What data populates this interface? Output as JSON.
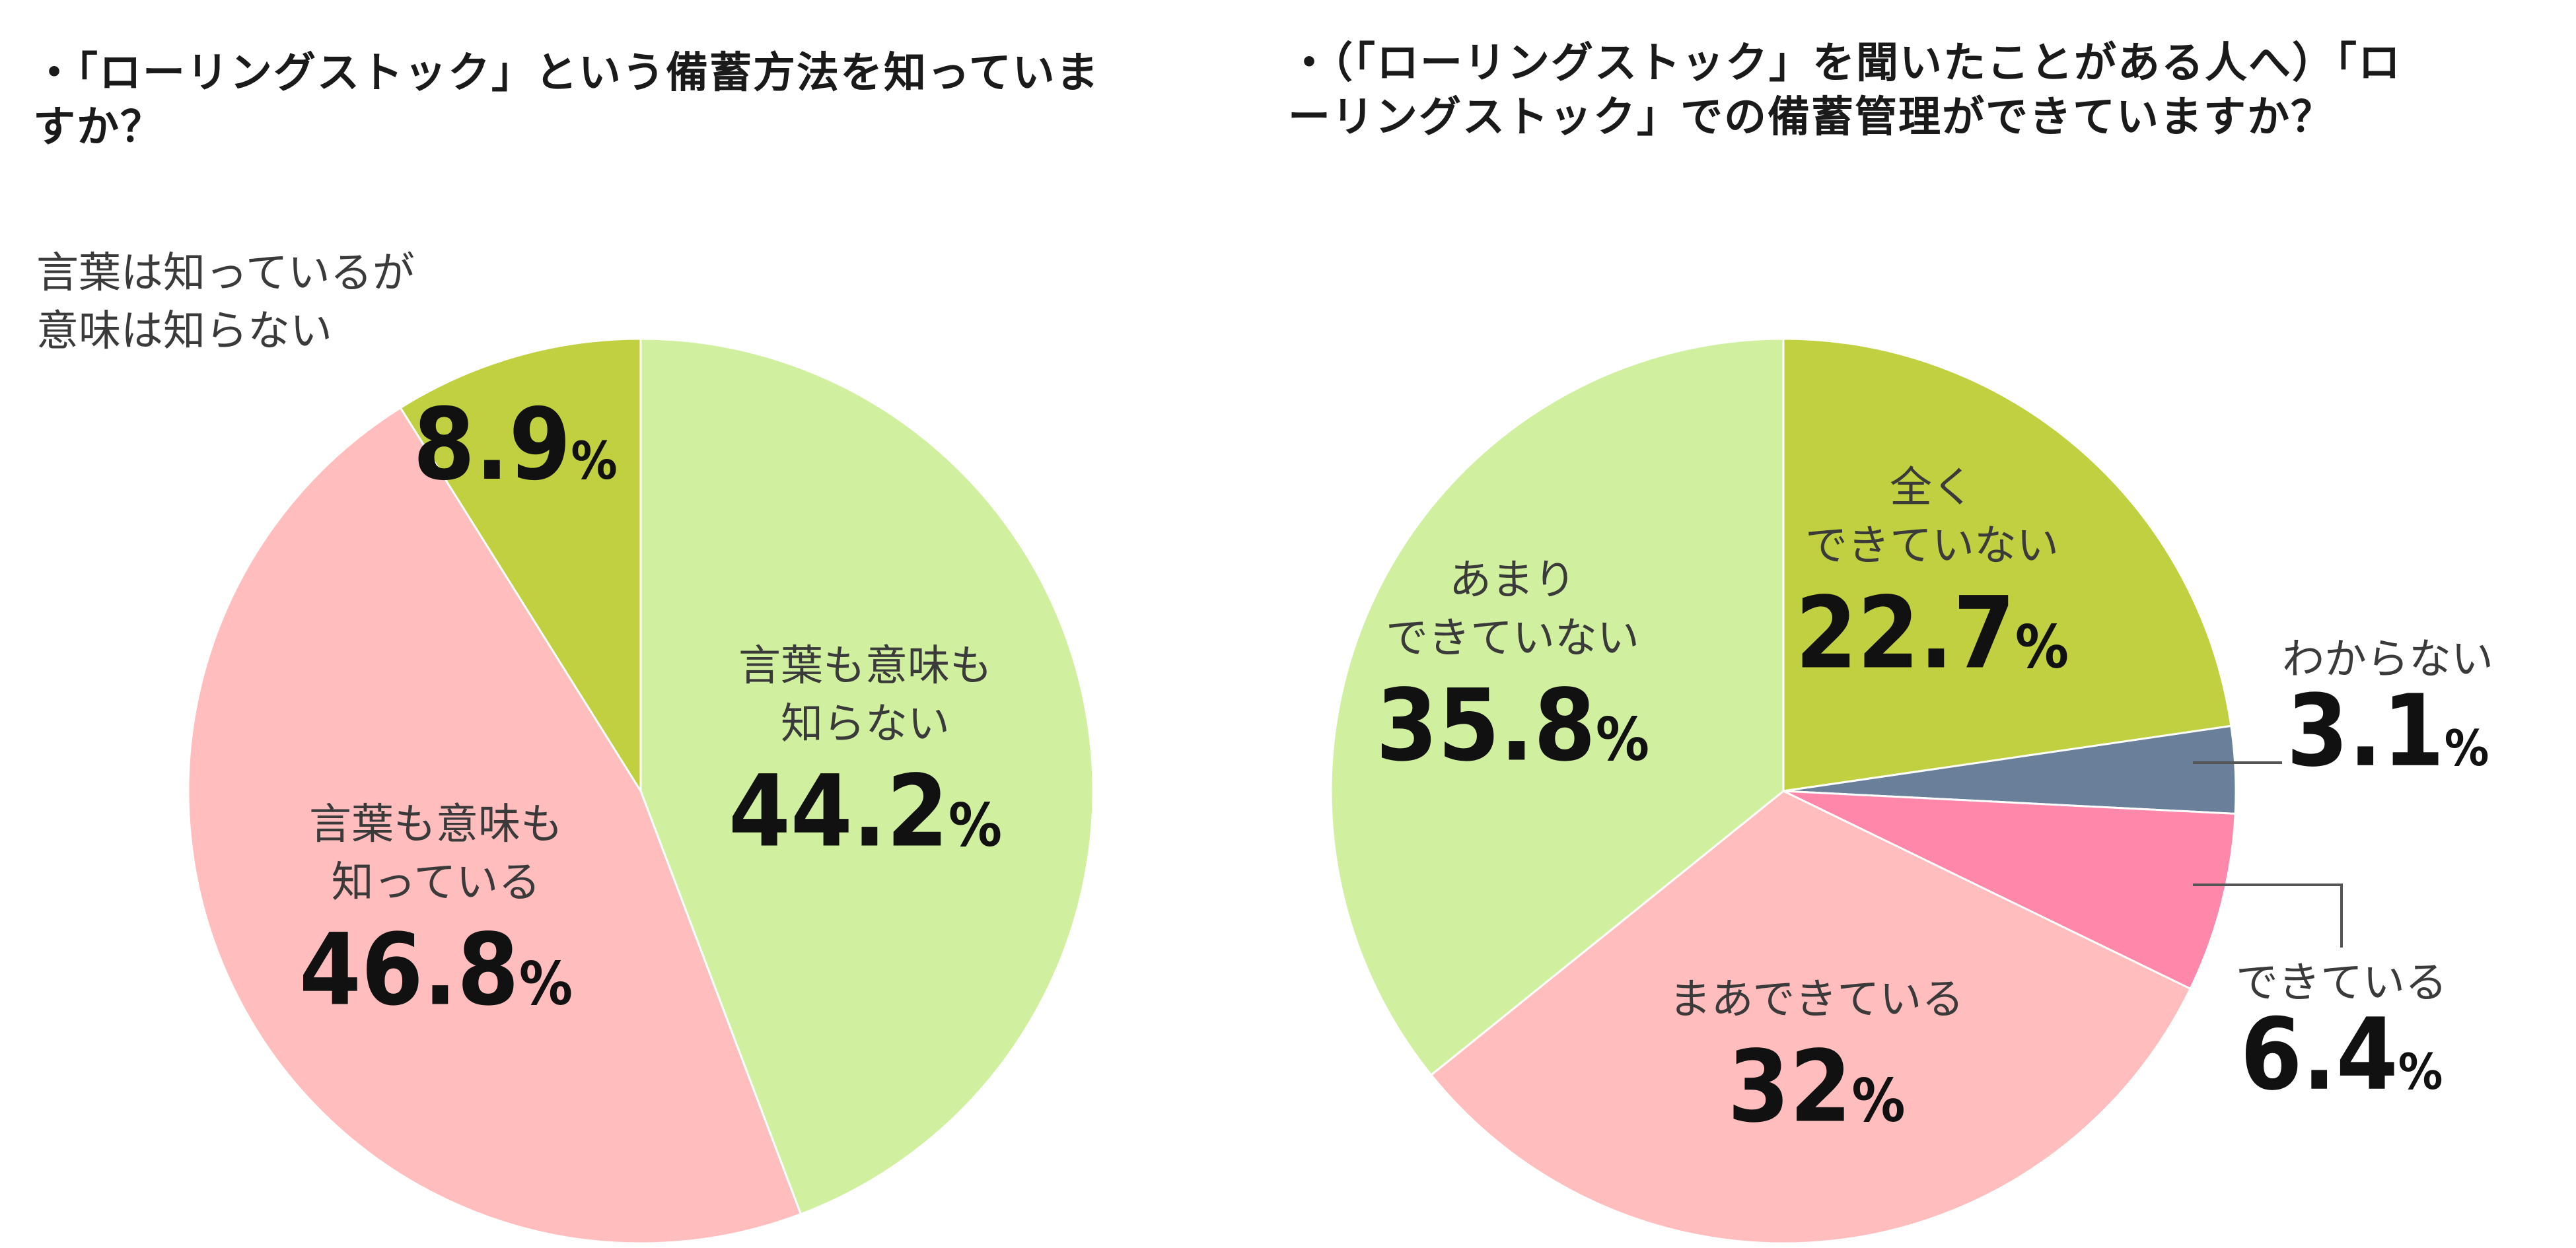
{
  "titles": {
    "left": "・「ローリングストック」という備蓄方法を知っていますか？",
    "right": "・（「ローリングストック」を聞いたことがある人へ）「ローリングストック」での備蓄管理ができていますか？"
  },
  "chart_data": [
    {
      "type": "pie",
      "title": "・「ローリングストック」という備蓄方法を知っていますか？",
      "start_angle_deg": 0,
      "direction": "clockwise",
      "slices": [
        {
          "label": "言葉も意味も知らない",
          "label_lines": [
            "言葉も意味も",
            "知らない"
          ],
          "value": 44.2,
          "value_text": "44.2",
          "color": "#d0f0a0"
        },
        {
          "label": "言葉も意味も知っている",
          "label_lines": [
            "言葉も意味も",
            "知っている"
          ],
          "value": 46.8,
          "value_text": "46.8",
          "color": "#ffbdbd"
        },
        {
          "label": "言葉は知っているが意味は知らない",
          "label_lines": [
            "言葉は知っているが",
            "意味は知らない"
          ],
          "value": 8.9,
          "value_text": "8.9",
          "color": "#c0d040"
        }
      ]
    },
    {
      "type": "pie",
      "title": "・（「ローリングストック」を聞いたことがある人へ）「ローリングストック」での備蓄管理ができていますか？",
      "start_angle_deg": 0,
      "direction": "clockwise",
      "slices": [
        {
          "label": "全くできていない",
          "label_lines": [
            "全く",
            "できていない"
          ],
          "value": 22.7,
          "value_text": "22.7",
          "color": "#c0d040"
        },
        {
          "label": "わからない",
          "label_lines": [
            "わからない"
          ],
          "value": 3.1,
          "value_text": "3.1",
          "color": "#6a7f9a"
        },
        {
          "label": "できている",
          "label_lines": [
            "できている"
          ],
          "value": 6.4,
          "value_text": "6.4",
          "color": "#ff88aa"
        },
        {
          "label": "まあできている",
          "label_lines": [
            "まあできている"
          ],
          "value": 32,
          "value_text": "32",
          "color": "#ffbdbd"
        },
        {
          "label": "あまりできていない",
          "label_lines": [
            "あまり",
            "できていない"
          ],
          "value": 35.8,
          "value_text": "35.8",
          "color": "#d0f0a0"
        }
      ]
    }
  ],
  "units": {
    "percent": "%"
  }
}
